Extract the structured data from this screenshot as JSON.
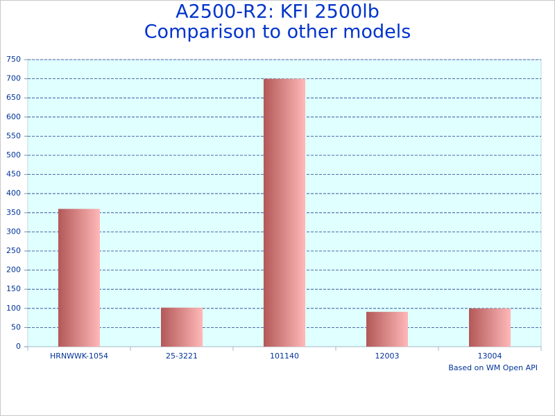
{
  "chart_data": {
    "type": "bar",
    "title": "A2500-R2: KFI 2500lb",
    "subtitle": "Comparison to other models",
    "annotation": "Based on WM Open API",
    "categories": [
      "HRNWWK-1054",
      "25-3221",
      "101140",
      "12003",
      "13004"
    ],
    "values": [
      360,
      102,
      700,
      91,
      100
    ],
    "color": [
      "#b35858",
      "#ffb8b8"
    ],
    "ylim": [
      0,
      750
    ],
    "yticks": [
      0,
      50,
      100,
      150,
      200,
      250,
      300,
      350,
      400,
      450,
      500,
      550,
      600,
      650,
      700,
      750
    ],
    "grid": true
  }
}
